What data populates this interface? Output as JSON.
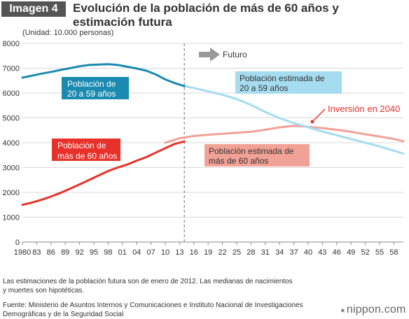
{
  "header": {
    "badge": "Imagen 4",
    "title": "Evolución de la población de más de 60 años y estimación futura"
  },
  "unit_label": "(Unidad: 10.000 personas)",
  "annotations": {
    "future": "Futuro",
    "pop_20_59": [
      "Población de",
      "20 a 59 años"
    ],
    "pop_60": [
      "Población de",
      "más de 60 años"
    ],
    "est_20_59": [
      "Población estimada de",
      "20 a 59 años"
    ],
    "est_60": [
      "Población estimada de",
      "más de 60 años"
    ],
    "inversion": "Inversión en 2040"
  },
  "footer": {
    "notes": "Las estimaciones de la población futura son de enero de 2012. Las medianas de nacimientos y muertes son hipotéticas.",
    "source": "Fuente: Ministerio de Asuntos Internos y Comunicaciones e Instituto Nacional de Investigaciones Demográficas y de la Seguridad Social",
    "brand": "nippon.com"
  },
  "colors": {
    "hist_20_59": "#1b8ab0",
    "est_20_59": "#a6dcf0",
    "hist_60": "#e8312a",
    "est_60": "#f2a196",
    "future_arrow": "#999999",
    "grid": "#d8d8d8"
  },
  "chart_data": {
    "type": "line",
    "title": "Evolución de la población de más de 60 años y estimación futura",
    "ylabel": "(Unidad: 10.000 personas)",
    "xlabel": "",
    "ylim": [
      0,
      8000
    ],
    "xlim": [
      1980,
      2060
    ],
    "yticks": [
      0,
      1000,
      2000,
      3000,
      4000,
      5000,
      6000,
      7000,
      8000
    ],
    "xticks": [
      1980,
      1983,
      1986,
      1989,
      1992,
      1995,
      1998,
      2001,
      2004,
      2007,
      2010,
      2013,
      2016,
      2019,
      2022,
      2025,
      2028,
      2031,
      2034,
      2037,
      2040,
      2043,
      2046,
      2049,
      2052,
      2055,
      2058
    ],
    "xtick_labels": [
      "1980",
      "83",
      "86",
      "89",
      "92",
      "95",
      "98",
      "01",
      "04",
      "07",
      "10",
      "13",
      "16",
      "19",
      "22",
      "25",
      "28",
      "31",
      "34",
      "37",
      "40",
      "43",
      "46",
      "49",
      "52",
      "55",
      "58"
    ],
    "grid": true,
    "future_start": 2014,
    "series": [
      {
        "name": "Población de 20 a 59 años",
        "color_key": "hist_20_59",
        "x": [
          1980,
          1982,
          1984,
          1986,
          1988,
          1990,
          1992,
          1994,
          1996,
          1998,
          1999,
          2000,
          2002,
          2004,
          2006,
          2008,
          2010,
          2012,
          2014
        ],
        "y": [
          6620,
          6700,
          6780,
          6850,
          6930,
          7000,
          7080,
          7130,
          7150,
          7160,
          7150,
          7130,
          7060,
          6990,
          6900,
          6750,
          6550,
          6400,
          6280
        ]
      },
      {
        "name": "Población de más de 60 años",
        "color_key": "hist_60",
        "x": [
          1980,
          1982,
          1984,
          1986,
          1988,
          1990,
          1992,
          1994,
          1996,
          1998,
          2000,
          2002,
          2004,
          2006,
          2008,
          2010,
          2012,
          2014
        ],
        "y": [
          1500,
          1590,
          1700,
          1830,
          1980,
          2150,
          2320,
          2500,
          2680,
          2860,
          3000,
          3120,
          3280,
          3420,
          3600,
          3780,
          3950,
          4050
        ]
      },
      {
        "name": "Población estimada de 20 a 59 años",
        "color_key": "est_20_59",
        "x": [
          2014,
          2016,
          2019,
          2022,
          2025,
          2028,
          2031,
          2034,
          2037,
          2040,
          2043,
          2046,
          2049,
          2052,
          2055,
          2058,
          2060
        ],
        "y": [
          6280,
          6200,
          6070,
          5930,
          5760,
          5520,
          5240,
          4990,
          4790,
          4620,
          4450,
          4300,
          4150,
          4000,
          3850,
          3680,
          3560
        ]
      },
      {
        "name": "Población estimada de más de 60 años",
        "color_key": "est_60",
        "x": [
          2010,
          2013,
          2016,
          2019,
          2022,
          2025,
          2028,
          2031,
          2034,
          2037,
          2040,
          2043,
          2046,
          2049,
          2052,
          2055,
          2058,
          2060
        ],
        "y": [
          4000,
          4180,
          4270,
          4320,
          4360,
          4400,
          4440,
          4520,
          4620,
          4680,
          4640,
          4590,
          4520,
          4440,
          4340,
          4250,
          4150,
          4060
        ]
      }
    ]
  }
}
